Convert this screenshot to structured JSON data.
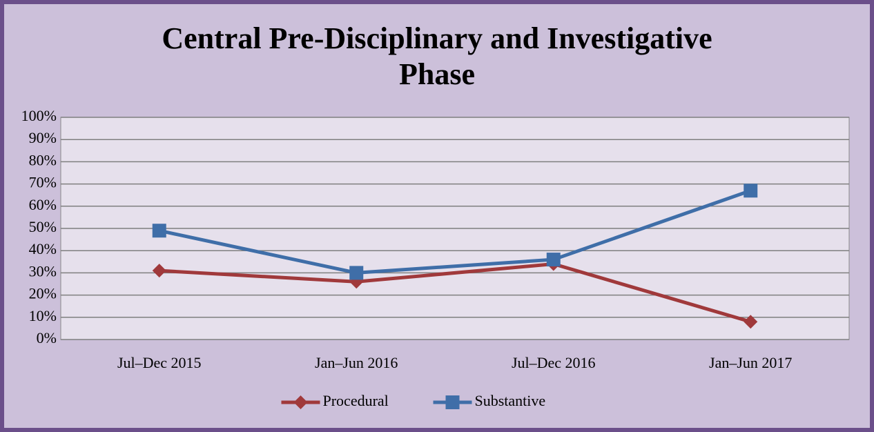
{
  "chart_data": {
    "type": "line",
    "title": "Central Pre-Disciplinary and Investigative Phase",
    "categories": [
      "Jul–Dec 2015",
      "Jan–Jun 2016",
      "Jul–Dec 2016",
      "Jan–Jun 2017"
    ],
    "series": [
      {
        "name": "Procedural",
        "color": "#a0393b",
        "marker": "diamond",
        "values": [
          31,
          26,
          34,
          8
        ]
      },
      {
        "name": "Substantive",
        "color": "#3f6ea8",
        "marker": "square",
        "values": [
          49,
          30,
          36,
          67
        ]
      }
    ],
    "ylim": [
      0,
      100
    ],
    "yticks": [
      {
        "value": 0,
        "label": "0%"
      },
      {
        "value": 10,
        "label": "10%"
      },
      {
        "value": 20,
        "label": "20%"
      },
      {
        "value": 30,
        "label": "30%"
      },
      {
        "value": 40,
        "label": "40%"
      },
      {
        "value": 50,
        "label": "50%"
      },
      {
        "value": 60,
        "label": "60%"
      },
      {
        "value": 70,
        "label": "70%"
      },
      {
        "value": 80,
        "label": "80%"
      },
      {
        "value": 90,
        "label": "90%"
      },
      {
        "value": 100,
        "label": "100%"
      }
    ],
    "grid": true,
    "legend": "bottom"
  }
}
